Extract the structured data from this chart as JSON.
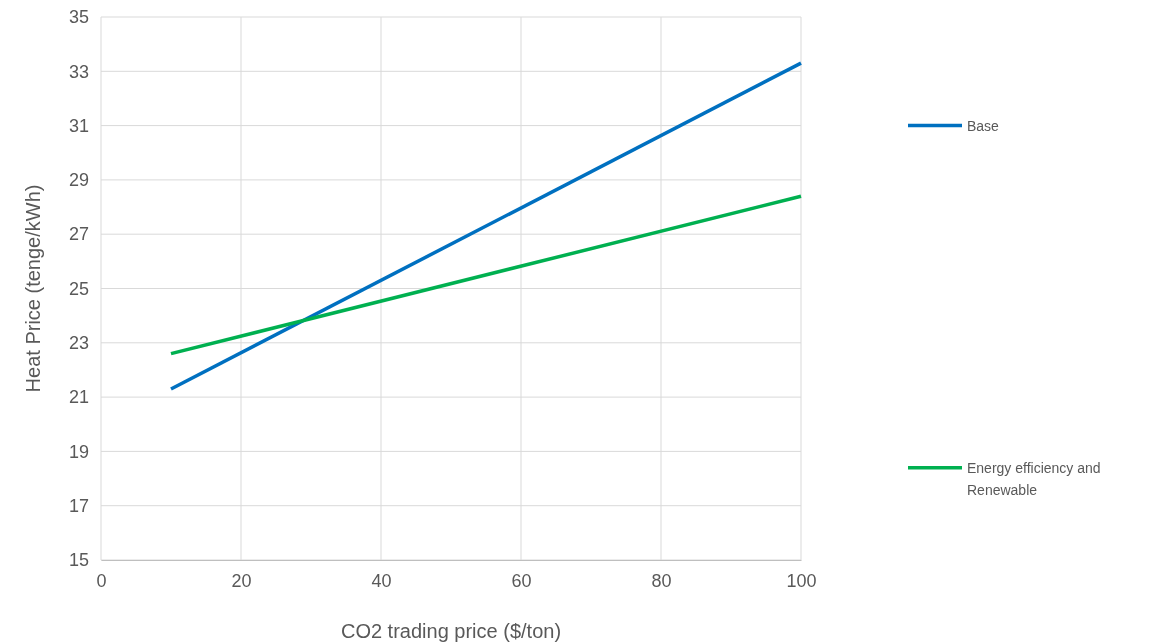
{
  "chart_data": {
    "type": "line",
    "xlabel": "CO2 trading price ($/ton)",
    "ylabel": "Heat Price (tenge/kWh)",
    "x": [
      10,
      100
    ],
    "series": [
      {
        "name": "Base",
        "color": "#0070c0",
        "values": [
          21.3,
          33.3
        ]
      },
      {
        "name": "Energy efficiency and Renewable",
        "color": "#00b050",
        "values": [
          22.6,
          28.4
        ]
      }
    ],
    "xlim": [
      0,
      100
    ],
    "xticks": [
      0,
      20,
      40,
      60,
      80,
      100
    ],
    "ylim": [
      15,
      35
    ],
    "yticks": [
      15,
      17,
      19,
      21,
      23,
      25,
      27,
      29,
      31,
      33,
      35
    ],
    "grid": true,
    "legend": "right",
    "marker": "none",
    "line_style": "solid"
  }
}
